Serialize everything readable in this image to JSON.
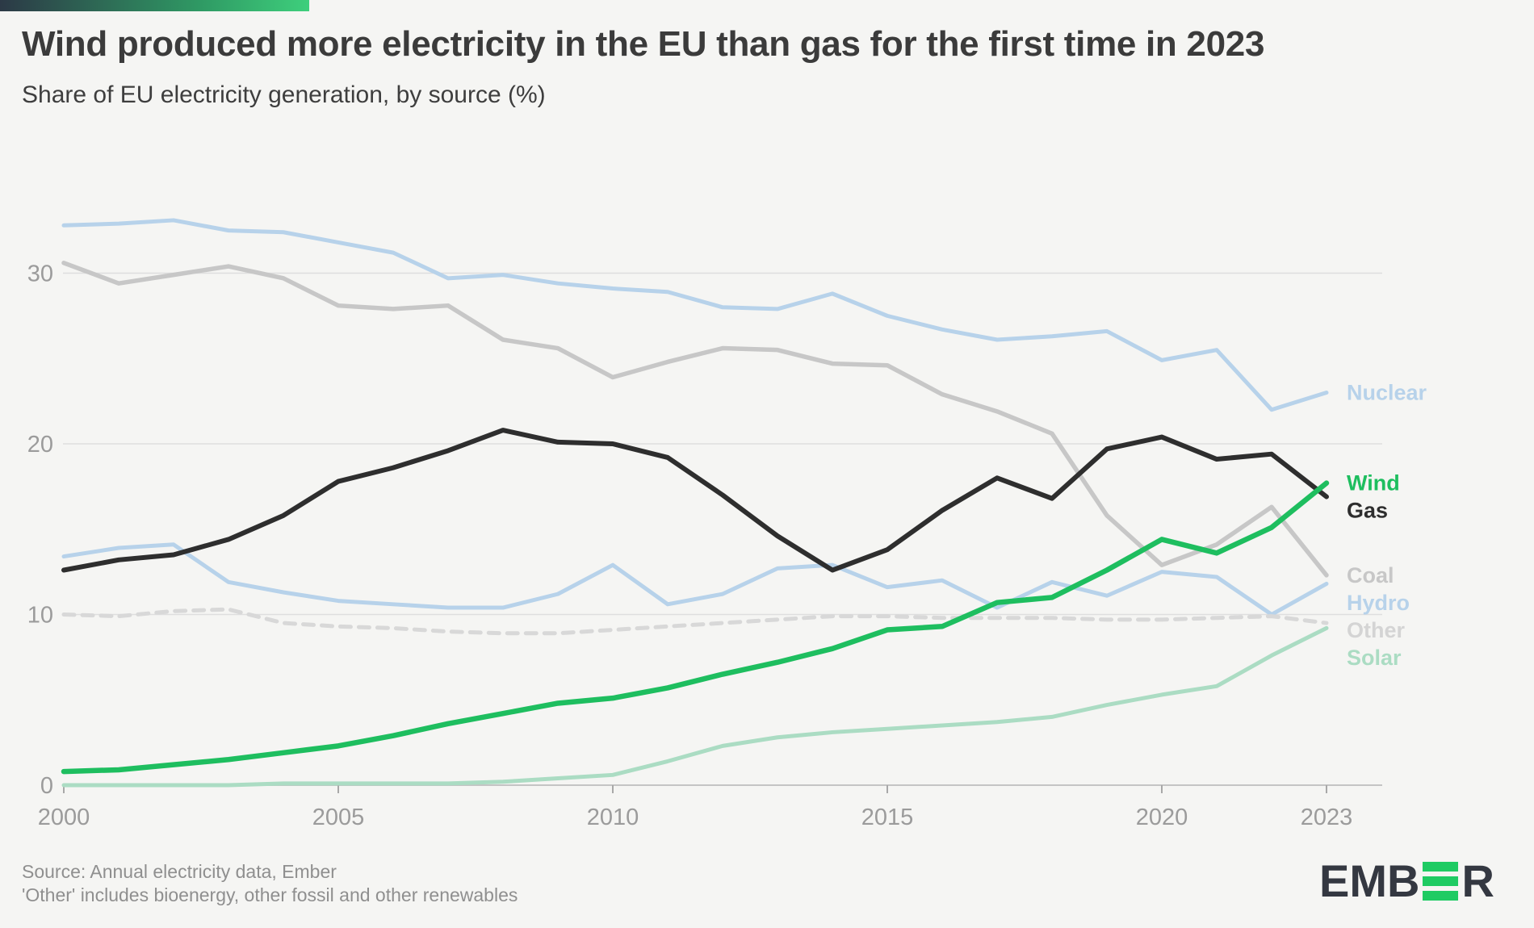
{
  "header": {
    "title": "Wind produced more electricity in the EU than gas for the first time in 2023",
    "subtitle": "Share of EU electricity generation, by source (%)"
  },
  "footer": {
    "source_line1": "Source: Annual electricity data, Ember",
    "source_line2": "'Other' includes bioenergy, other fossil and other renewables"
  },
  "logo": {
    "text_left": "EMB",
    "text_right": "R",
    "bar_color": "#1fcb63",
    "text_color": "#343841"
  },
  "brand": {
    "topbar_gradient_start": "#2c3946",
    "topbar_gradient_mid": "#2f9a64",
    "topbar_gradient_end": "#3ecf7c",
    "background": "#f5f5f3",
    "gridline": "#dedede",
    "axis_line": "#c4c4c4",
    "tick_color": "#a8a8a8",
    "axis_label_color": "#9b9b9b"
  },
  "chart_data": {
    "type": "line",
    "title": "Share of EU electricity generation, by source (%)",
    "xlabel": "",
    "ylabel": "",
    "grid": "horizontal",
    "legend_position": "right-of-line-ends",
    "xlim": [
      2000,
      2024
    ],
    "ylim": [
      0,
      36
    ],
    "xticks": [
      2000,
      2005,
      2010,
      2015,
      2020,
      2023
    ],
    "yticks": [
      0,
      10,
      20,
      30
    ],
    "x": [
      2000,
      2001,
      2002,
      2003,
      2004,
      2005,
      2006,
      2007,
      2008,
      2009,
      2010,
      2011,
      2012,
      2013,
      2014,
      2015,
      2016,
      2017,
      2018,
      2019,
      2020,
      2021,
      2022,
      2023
    ],
    "series": [
      {
        "name": "Hydro",
        "color": "#b7d2ea",
        "label_color": "#b7d2ea",
        "dash": false,
        "width": 5,
        "values": [
          13.4,
          13.9,
          14.1,
          11.9,
          11.3,
          10.8,
          10.6,
          10.4,
          10.4,
          11.2,
          12.9,
          10.6,
          11.2,
          12.7,
          12.9,
          11.6,
          12.0,
          10.4,
          11.9,
          11.1,
          12.5,
          12.2,
          10.0,
          11.8
        ]
      },
      {
        "name": "Other",
        "color": "#d8d8d8",
        "label_color": "#d4d4d4",
        "dash": true,
        "width": 5,
        "values": [
          10.0,
          9.9,
          10.2,
          10.3,
          9.5,
          9.3,
          9.2,
          9.0,
          8.9,
          8.9,
          9.1,
          9.3,
          9.5,
          9.7,
          9.9,
          9.9,
          9.8,
          9.8,
          9.8,
          9.7,
          9.7,
          9.8,
          9.9,
          9.5
        ]
      },
      {
        "name": "Solar",
        "color": "#abdcc3",
        "label_color": "#abdcc3",
        "dash": false,
        "width": 5,
        "values": [
          0.0,
          0.0,
          0.0,
          0.0,
          0.1,
          0.1,
          0.1,
          0.1,
          0.2,
          0.4,
          0.6,
          1.4,
          2.3,
          2.8,
          3.1,
          3.3,
          3.5,
          3.7,
          4.0,
          4.7,
          5.3,
          5.8,
          7.6,
          9.2
        ]
      },
      {
        "name": "Coal",
        "color": "#c7c7c7",
        "label_color": "#c7c7c7",
        "dash": false,
        "width": 5.5,
        "values": [
          30.6,
          29.4,
          29.9,
          30.4,
          29.7,
          28.1,
          27.9,
          28.1,
          26.1,
          25.6,
          23.9,
          24.8,
          25.6,
          25.5,
          24.7,
          24.6,
          22.9,
          21.9,
          20.6,
          15.8,
          12.9,
          14.1,
          16.3,
          12.3
        ]
      },
      {
        "name": "Nuclear",
        "color": "#b7d2ea",
        "label_color": "#b7d2ea",
        "dash": false,
        "width": 5,
        "values": [
          32.8,
          32.9,
          33.1,
          32.5,
          32.4,
          31.8,
          31.2,
          29.7,
          29.9,
          29.4,
          29.1,
          28.9,
          28.0,
          27.9,
          28.8,
          27.5,
          26.7,
          26.1,
          26.3,
          26.6,
          24.9,
          25.5,
          22.0,
          23.0
        ]
      },
      {
        "name": "Gas",
        "color": "#2e2e2e",
        "label_color": "#2e2e2e",
        "dash": false,
        "width": 6,
        "values": [
          12.6,
          13.2,
          13.5,
          14.4,
          15.8,
          17.8,
          18.6,
          19.6,
          20.8,
          20.1,
          20.0,
          19.2,
          17.0,
          14.6,
          12.6,
          13.8,
          16.1,
          18.0,
          16.8,
          19.7,
          20.4,
          19.1,
          19.4,
          16.9
        ]
      },
      {
        "name": "Wind",
        "color": "#1ebe5f",
        "label_color": "#1ebe5f",
        "dash": false,
        "width": 6.5,
        "values": [
          0.8,
          0.9,
          1.2,
          1.5,
          1.9,
          2.3,
          2.9,
          3.6,
          4.2,
          4.8,
          5.1,
          5.7,
          6.5,
          7.2,
          8.0,
          9.1,
          9.3,
          10.7,
          11.0,
          12.6,
          14.4,
          13.6,
          15.1,
          17.7
        ]
      }
    ]
  }
}
